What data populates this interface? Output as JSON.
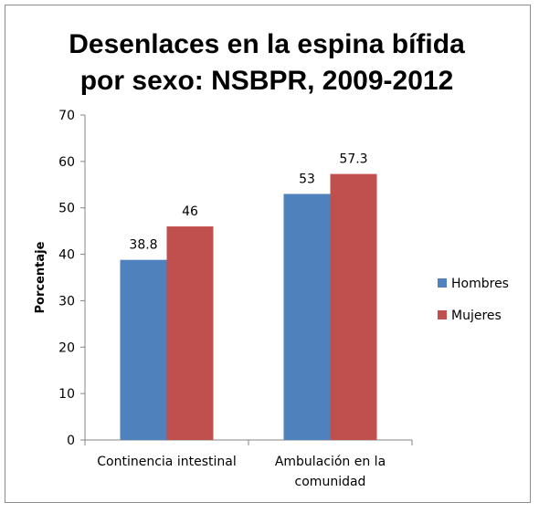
{
  "chart_data": {
    "type": "bar",
    "title_lines": [
      "Desenlaces en la espina bífida",
      "por sexo: NSBPR, 2009-2012"
    ],
    "ylabel": "Porcentaje",
    "xlabel": "",
    "ylim": [
      0,
      70
    ],
    "yticks": [
      0,
      10,
      20,
      30,
      40,
      50,
      60,
      70
    ],
    "categories": [
      [
        "Continencia intestinal"
      ],
      [
        "Ambulación en la",
        "comunidad"
      ]
    ],
    "series": [
      {
        "name": "Hombres",
        "values": [
          38.8,
          53
        ],
        "labels": [
          "38.8",
          "53"
        ],
        "color": "#4f81bd"
      },
      {
        "name": "Mujeres",
        "values": [
          46,
          57.3
        ],
        "labels": [
          "46",
          "57.3"
        ],
        "color": "#c0504d"
      }
    ],
    "legend_position": "right",
    "grid": false
  }
}
